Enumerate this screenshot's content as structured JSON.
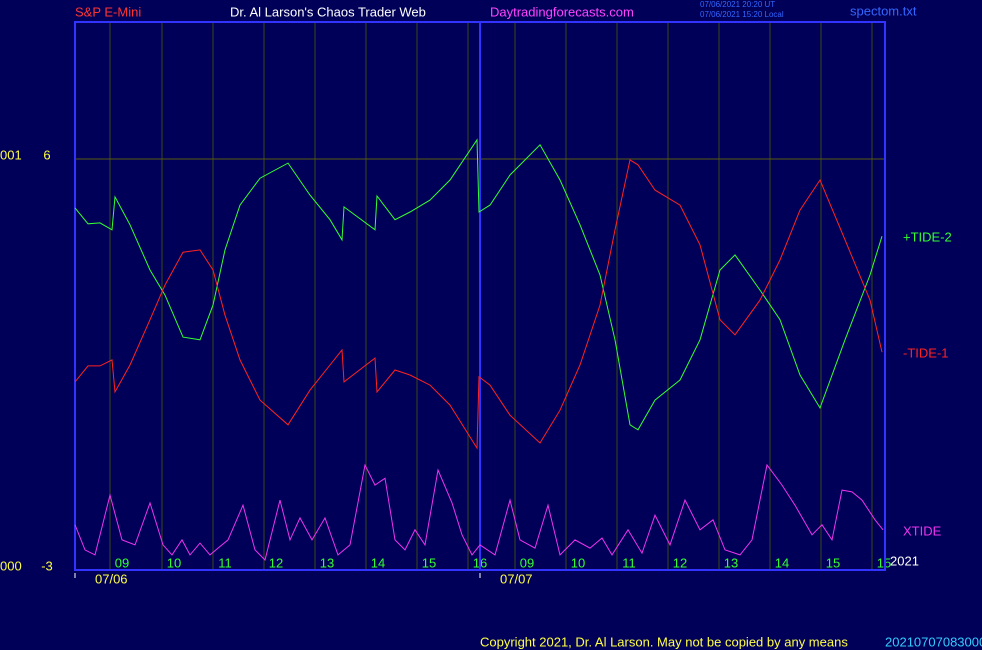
{
  "header": {
    "left": "S&P E-Mini",
    "center": "Dr. Al Larson's Chaos Trader Web",
    "site": "Daytradingforecasts.com",
    "time_ut": "07/06/2021 20:20 UT",
    "time_local": "07/06/2021 15:20 Local",
    "file": "spectom.txt"
  },
  "footer": {
    "copyright": "Copyright 2021, Dr. Al Larson. May not be copied by any means",
    "stamp": "20210707083000",
    "year": "2021"
  },
  "chart_data": {
    "type": "line",
    "ylim": [
      -3,
      9
    ],
    "yticks": [
      -3,
      6
    ],
    "y_codes": [
      "000",
      "001"
    ],
    "xlim": [
      0,
      162
    ],
    "xticks": [
      {
        "value": 7,
        "label": "09"
      },
      {
        "value": 17.4,
        "label": "10"
      },
      {
        "value": 27.6,
        "label": "11"
      },
      {
        "value": 37.8,
        "label": "12"
      },
      {
        "value": 48,
        "label": "13"
      },
      {
        "value": 58.2,
        "label": "14"
      },
      {
        "value": 68.4,
        "label": "15"
      },
      {
        "value": 78.6,
        "label": "16"
      },
      {
        "value": 88,
        "label": "09"
      },
      {
        "value": 98.2,
        "label": "10"
      },
      {
        "value": 108.4,
        "label": "11"
      },
      {
        "value": 118.6,
        "label": "12"
      },
      {
        "value": 128.8,
        "label": "13"
      },
      {
        "value": 139,
        "label": "14"
      },
      {
        "value": 149.2,
        "label": "15"
      },
      {
        "value": 159.4,
        "label": "15"
      }
    ],
    "days": [
      {
        "value": 0,
        "label": "07/06"
      },
      {
        "value": 81,
        "label": "07/07"
      }
    ],
    "grid": true,
    "series": [
      {
        "name": "+TIDE-2",
        "color": "#33ff33",
        "x": [
          0,
          2.6,
          5,
          7.4,
          8,
          11,
          15,
          18,
          21.6,
          25,
          27.6,
          30,
          33,
          37,
          42.6,
          47,
          51,
          53.4,
          53.8,
          60,
          60.4,
          64,
          67,
          71,
          75,
          80.4,
          80.8,
          83,
          87,
          93,
          97,
          101,
          105,
          108,
          111,
          112.6,
          116,
          121,
          125,
          129,
          132,
          137,
          141,
          145,
          149,
          154,
          159,
          161.4
        ],
        "values": [
          4.93,
          4.58,
          4.6,
          4.45,
          5.17,
          4.56,
          3.57,
          3.02,
          2.1,
          2.04,
          2.8,
          4.01,
          4.99,
          5.58,
          5.91,
          5.21,
          4.67,
          4.23,
          4.95,
          4.45,
          5.19,
          4.67,
          4.84,
          5.1,
          5.54,
          6.42,
          4.84,
          4.99,
          5.65,
          6.31,
          5.54,
          4.56,
          3.46,
          2.04,
          0.18,
          0.07,
          0.72,
          1.16,
          2.04,
          3.57,
          3.9,
          3.13,
          2.48,
          1.27,
          0.55,
          2.04,
          3.46,
          4.31
        ]
      },
      {
        "name": "-TIDE-1",
        "color": "#ff2222",
        "x": [
          0,
          2.6,
          5,
          7.4,
          8,
          11,
          15,
          18,
          21.6,
          25,
          27.6,
          30,
          33,
          37,
          42.6,
          47,
          51,
          53.4,
          53.8,
          60,
          60.4,
          64,
          67,
          71,
          75,
          80.4,
          80.8,
          83,
          87,
          93,
          97,
          101,
          105,
          108,
          111,
          112.6,
          116,
          121,
          125,
          129,
          132,
          137,
          141,
          145,
          149,
          154,
          159,
          161.4
        ],
        "values": [
          1.12,
          1.47,
          1.47,
          1.6,
          0.9,
          1.49,
          2.48,
          3.24,
          3.96,
          4.01,
          3.57,
          2.58,
          1.6,
          0.72,
          0.18,
          0.94,
          1.49,
          1.82,
          1.12,
          1.64,
          0.9,
          1.38,
          1.27,
          1.05,
          0.61,
          -0.33,
          1.23,
          1.05,
          0.39,
          -0.22,
          0.5,
          1.49,
          2.8,
          4.45,
          5.98,
          5.87,
          5.32,
          4.99,
          4.12,
          2.48,
          2.15,
          2.91,
          3.79,
          4.88,
          5.54,
          4.23,
          2.91,
          1.77
        ]
      },
      {
        "name": "XTIDE",
        "color": "#ee33ee",
        "x": [
          0,
          2,
          4,
          7,
          9.4,
          12,
          15,
          17.6,
          19.4,
          21.4,
          23,
          25,
          27,
          28.6,
          30.6,
          33.6,
          36,
          38,
          41,
          43,
          45,
          47.4,
          50,
          52.6,
          55,
          58,
          60,
          62,
          64,
          66,
          68,
          70,
          72.6,
          75.4,
          77.4,
          79.4,
          81,
          84,
          87,
          89,
          92,
          94.6,
          97,
          100,
          103,
          105.4,
          107.4,
          110.6,
          113.4,
          116,
          119,
          122,
          125,
          127.6,
          130,
          133,
          135.4,
          138.4,
          141.4,
          144,
          147.4,
          149.4,
          151.4,
          153.4,
          155.4,
          157.4,
          160,
          161.6
        ],
        "values": [
          -2.01,
          -2.56,
          -2.67,
          -1.36,
          -2.34,
          -2.45,
          -1.53,
          -2.45,
          -2.67,
          -2.34,
          -2.67,
          -2.41,
          -2.67,
          -2.52,
          -2.34,
          -1.58,
          -2.56,
          -2.78,
          -1.47,
          -2.34,
          -1.86,
          -2.34,
          -1.86,
          -2.67,
          -2.45,
          -0.7,
          -1.14,
          -0.99,
          -2.34,
          -2.56,
          -2.12,
          -2.45,
          -0.81,
          -1.53,
          -2.23,
          -2.67,
          -2.45,
          -2.67,
          -1.47,
          -2.34,
          -2.52,
          -1.58,
          -2.67,
          -2.34,
          -2.52,
          -2.3,
          -2.67,
          -2.12,
          -2.63,
          -1.8,
          -2.45,
          -1.47,
          -2.12,
          -1.9,
          -2.56,
          -2.67,
          -2.34,
          -0.7,
          -1.14,
          -1.58,
          -2.23,
          -2.01,
          -2.34,
          -1.25,
          -1.29,
          -1.47,
          -1.9,
          -2.12
        ]
      }
    ]
  }
}
